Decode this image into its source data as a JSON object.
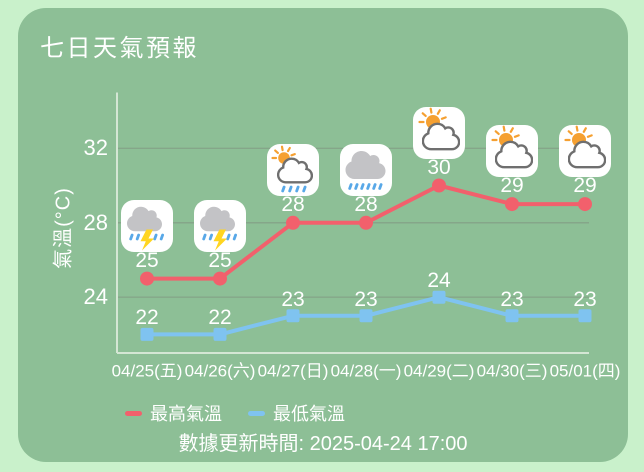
{
  "title": "七日天氣預報",
  "colors": {
    "page_bg": "#c9f1cb",
    "card_bg": "#8dbf96",
    "text": "#ffffff",
    "max_line": "#f2606c",
    "min_line": "#7fc3f0",
    "gridline": "#7f937f",
    "axis": "#d4e6d4",
    "icon_bg": "#ffffff",
    "cloud_gray": "#c3c3c6",
    "cloud_outline": "#6f6f6f",
    "sun": "#f5a031",
    "bolt": "#ffd520",
    "rain": "#58a8e8"
  },
  "chart_data": {
    "type": "line",
    "categories": [
      "04/25(五)",
      "04/26(六)",
      "04/27(日)",
      "04/28(一)",
      "04/29(二)",
      "04/30(三)",
      "05/01(四)"
    ],
    "series": [
      {
        "name": "最高氣溫",
        "values": [
          25,
          25,
          28,
          28,
          30,
          29,
          29
        ],
        "color": "#f2606c",
        "marker": "circle"
      },
      {
        "name": "最低氣溫",
        "values": [
          22,
          22,
          23,
          23,
          24,
          23,
          23
        ],
        "color": "#7fc3f0",
        "marker": "square"
      }
    ],
    "icons": [
      "thunderstorm",
      "thunderstorm",
      "sun-shower",
      "rain",
      "partly-sunny",
      "partly-sunny",
      "partly-sunny"
    ],
    "ylabel": "氣溫(°C)",
    "yticks": [
      24,
      28,
      32
    ],
    "ylim": [
      21,
      35
    ],
    "grid": true,
    "legend_position": "bottom-left"
  },
  "footer": {
    "updated_text": "數據更新時間: 2025-04-24 17:00"
  }
}
